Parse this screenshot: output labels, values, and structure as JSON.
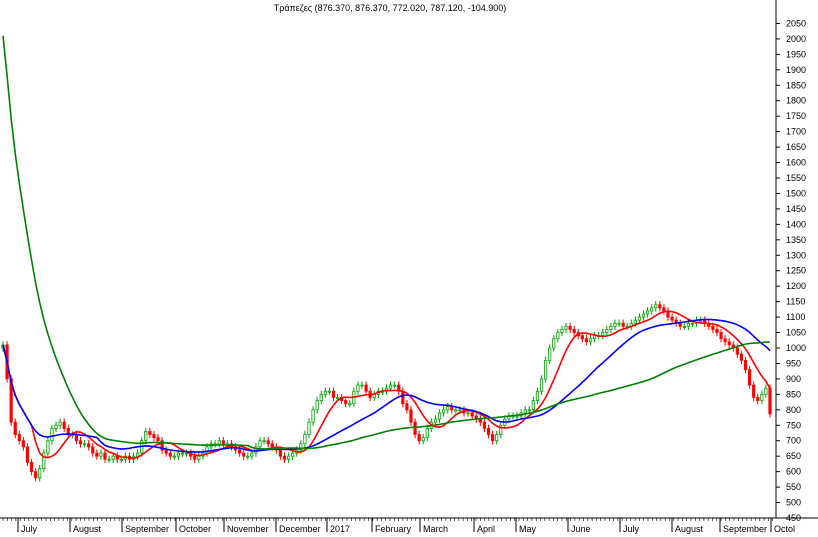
{
  "chart_data": {
    "type": "candlestick",
    "title": "Τράπεζες (876.370, 876.370, 772.020, 787.120, -104.900)",
    "ylim": [
      450,
      2100
    ],
    "yticks": [
      450,
      500,
      550,
      600,
      650,
      700,
      750,
      800,
      850,
      900,
      950,
      1000,
      1050,
      1100,
      1150,
      1200,
      1250,
      1300,
      1350,
      1400,
      1450,
      1500,
      1550,
      1600,
      1650,
      1700,
      1750,
      1800,
      1850,
      1900,
      1950,
      2000,
      2050
    ],
    "x_labels": [
      "July",
      "August",
      "September",
      "October",
      "November",
      "December",
      "2017",
      "February",
      "March",
      "April",
      "May",
      "June",
      "July",
      "August",
      "September",
      "Octol"
    ],
    "grid": false,
    "colors": {
      "up": "#00a000",
      "down": "#ff0000",
      "ma_fast": "#ff0000",
      "ma_mid": "#0000ff",
      "ma_slow": "#008000"
    },
    "close": [
      1010,
      900,
      760,
      720,
      700,
      680,
      630,
      600,
      580,
      610,
      660,
      700,
      740,
      750,
      760,
      740,
      720,
      720,
      700,
      690,
      690,
      680,
      660,
      650,
      660,
      640,
      640,
      650,
      640,
      640,
      650,
      640,
      650,
      660,
      700,
      730,
      720,
      710,
      700,
      670,
      660,
      650,
      650,
      660,
      660,
      660,
      650,
      640,
      650,
      660,
      680,
      690,
      690,
      700,
      690,
      690,
      680,
      670,
      660,
      650,
      650,
      660,
      680,
      700,
      700,
      690,
      680,
      670,
      650,
      640,
      650,
      660,
      670,
      690,
      720,
      760,
      800,
      830,
      850,
      860,
      860,
      840,
      840,
      830,
      820,
      820,
      860,
      880,
      880,
      860,
      840,
      850,
      860,
      860,
      870,
      880,
      880,
      860,
      820,
      800,
      760,
      720,
      700,
      710,
      740,
      760,
      770,
      790,
      800,
      810,
      800,
      800,
      800,
      790,
      790,
      780,
      770,
      760,
      740,
      720,
      700,
      720,
      750,
      770,
      780,
      780,
      780,
      790,
      800,
      800,
      830,
      860,
      900,
      960,
      1000,
      1030,
      1050,
      1060,
      1070,
      1060,
      1050,
      1040,
      1030,
      1020,
      1030,
      1040,
      1040,
      1050,
      1060,
      1070,
      1080,
      1080,
      1070,
      1070,
      1080,
      1090,
      1100,
      1110,
      1120,
      1130,
      1140,
      1130,
      1120,
      1100,
      1090,
      1080,
      1070,
      1070,
      1080,
      1080,
      1090,
      1090,
      1080,
      1070,
      1060,
      1050,
      1030,
      1020,
      1010,
      1000,
      980,
      960,
      930,
      880,
      840,
      830,
      850,
      870,
      787
    ]
  }
}
